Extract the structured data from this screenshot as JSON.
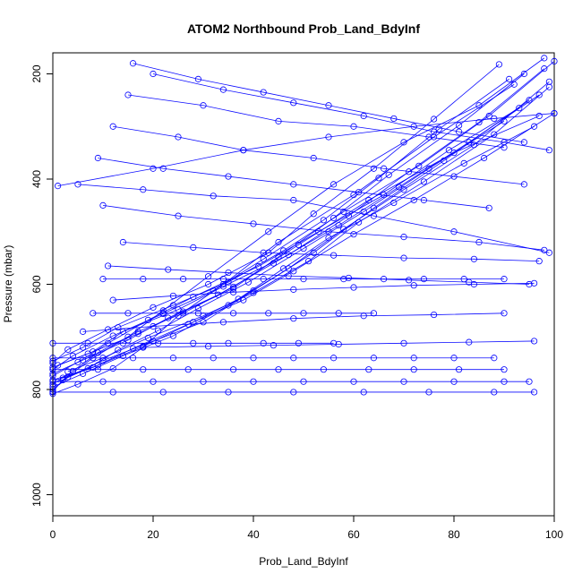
{
  "chart_data": {
    "type": "line",
    "title": "ATOM2 Northbound Prob_Land_BdyInf",
    "xlabel": "Prob_Land_BdyInf",
    "ylabel": "Pressure (mbar)",
    "xlim": [
      0,
      100
    ],
    "ylim": [
      160,
      1040
    ],
    "y_inverted": true,
    "x_ticks": [
      0,
      20,
      40,
      60,
      80,
      100
    ],
    "y_ticks": [
      200,
      400,
      600,
      800,
      1000
    ],
    "grid": false,
    "legend": "none",
    "color": "#0000ff",
    "marker": "open-circle",
    "series": [
      {
        "x": [
          0,
          5,
          12,
          18,
          25,
          34,
          45,
          60,
          76,
          92
        ],
        "y": [
          808,
          790,
          760,
          720,
          660,
          600,
          520,
          430,
          320,
          220
        ]
      },
      {
        "x": [
          0,
          2,
          8,
          15,
          22,
          31,
          43,
          56,
          70,
          85,
          98
        ],
        "y": [
          804,
          782,
          740,
          700,
          650,
          585,
          500,
          410,
          330,
          260,
          170
        ]
      },
      {
        "x": [
          0,
          3,
          10,
          20,
          30,
          40,
          52,
          64,
          78,
          95
        ],
        "y": [
          800,
          776,
          745,
          708,
          672,
          612,
          540,
          455,
          365,
          250
        ]
      },
      {
        "x": [
          0,
          6,
          14,
          24,
          35,
          47,
          58,
          70,
          84,
          99
        ],
        "y": [
          795,
          770,
          736,
          698,
          640,
          570,
          495,
          420,
          335,
          215
        ]
      },
      {
        "x": [
          0,
          4,
          9,
          17,
          26,
          36,
          49,
          63,
          80,
          97
        ],
        "y": [
          790,
          765,
          730,
          690,
          655,
          605,
          525,
          440,
          350,
          280
        ]
      },
      {
        "x": [
          1,
          7,
          13,
          21,
          29,
          39,
          50,
          62,
          75,
          90
        ],
        "y": [
          786,
          760,
          725,
          688,
          646,
          596,
          532,
          462,
          380,
          290
        ]
      },
      {
        "x": [
          0,
          8,
          16,
          27,
          38,
          48,
          60,
          72,
          86,
          100
        ],
        "y": [
          782,
          758,
          722,
          676,
          630,
          575,
          505,
          440,
          360,
          275
        ]
      },
      {
        "x": [
          2,
          9,
          18,
          28,
          37,
          46,
          55,
          68,
          82,
          96
        ],
        "y": [
          778,
          754,
          718,
          672,
          628,
          570,
          512,
          445,
          370,
          300
        ]
      },
      {
        "x": [
          0,
          5,
          11,
          19,
          28,
          41,
          53,
          66,
          79,
          93
        ],
        "y": [
          774,
          748,
          712,
          668,
          624,
          566,
          500,
          430,
          345,
          265
        ]
      },
      {
        "x": [
          0,
          6,
          15,
          23,
          33,
          44,
          57,
          69,
          83,
          97
        ],
        "y": [
          770,
          744,
          706,
          664,
          620,
          560,
          488,
          415,
          330,
          240
        ]
      },
      {
        "x": [
          3,
          10,
          19,
          30,
          40,
          51,
          61,
          74,
          88,
          99
        ],
        "y": [
          766,
          740,
          702,
          660,
          616,
          556,
          482,
          405,
          315,
          225
        ]
      },
      {
        "x": [
          0,
          4,
          12,
          22,
          32,
          42,
          54,
          65,
          77,
          91
        ],
        "y": [
          762,
          736,
          698,
          656,
          612,
          552,
          478,
          398,
          305,
          210
        ]
      },
      {
        "x": [
          0,
          7,
          17,
          26,
          36,
          45,
          56,
          67,
          81,
          94
        ],
        "y": [
          758,
          732,
          694,
          652,
          608,
          548,
          474,
          392,
          298,
          200
        ]
      },
      {
        "x": [
          1,
          8,
          14,
          25,
          34,
          47,
          59,
          71,
          85,
          98
        ],
        "y": [
          754,
          728,
          690,
          648,
          604,
          544,
          470,
          386,
          292,
          190
        ]
      },
      {
        "x": [
          0,
          3,
          11,
          20,
          31,
          43,
          52,
          64,
          76,
          89
        ],
        "y": [
          750,
          724,
          686,
          644,
          600,
          540,
          466,
          380,
          286,
          182
        ]
      },
      {
        "x": [
          0,
          6,
          13,
          24,
          35,
          46,
          58,
          73,
          87,
          100
        ],
        "y": [
          746,
          720,
          682,
          640,
          596,
          536,
          462,
          375,
          280,
          176
        ]
      },
      {
        "x": [
          0,
          12,
          22,
          35,
          48,
          62,
          75,
          88,
          96
        ],
        "y": [
          805,
          805,
          805,
          805,
          805,
          805,
          805,
          805,
          805
        ]
      },
      {
        "x": [
          0,
          10,
          20,
          30,
          40,
          50,
          60,
          70,
          80,
          90,
          95
        ],
        "y": [
          785,
          785,
          785,
          785,
          785,
          785,
          785,
          785,
          785,
          785,
          785
        ]
      },
      {
        "x": [
          0,
          9,
          18,
          27,
          36,
          45,
          54,
          63,
          72,
          81,
          90
        ],
        "y": [
          762,
          762,
          762,
          762,
          762,
          762,
          762,
          762,
          762,
          762,
          762
        ]
      },
      {
        "x": [
          0,
          8,
          16,
          24,
          32,
          40,
          48,
          56,
          64,
          72,
          80,
          88
        ],
        "y": [
          740,
          740,
          740,
          740,
          740,
          740,
          740,
          740,
          740,
          740,
          740,
          740
        ]
      },
      {
        "x": [
          0,
          7,
          14,
          21,
          28,
          35,
          42,
          49,
          56
        ],
        "y": [
          712,
          712,
          712,
          712,
          712,
          712,
          712,
          712,
          712
        ]
      },
      {
        "x": [
          10,
          18,
          26,
          34,
          42,
          50,
          58,
          66,
          74,
          82,
          90
        ],
        "y": [
          590,
          590,
          590,
          590,
          590,
          590,
          590,
          590,
          590,
          590,
          590
        ]
      },
      {
        "x": [
          8,
          15,
          22,
          29,
          36,
          43,
          50,
          57,
          64
        ],
        "y": [
          655,
          655,
          655,
          655,
          655,
          655,
          655,
          655,
          655
        ]
      },
      {
        "x": [
          5,
          18,
          32,
          48,
          64,
          80,
          99
        ],
        "y": [
          410,
          420,
          432,
          440,
          470,
          500,
          540
        ]
      },
      {
        "x": [
          1,
          20,
          38,
          55,
          72,
          88,
          100
        ],
        "y": [
          413,
          380,
          345,
          320,
          300,
          285,
          275
        ]
      },
      {
        "x": [
          12,
          25,
          38,
          52,
          66,
          80,
          94
        ],
        "y": [
          300,
          320,
          345,
          360,
          380,
          395,
          410
        ]
      },
      {
        "x": [
          20,
          34,
          48,
          62,
          76,
          90,
          99
        ],
        "y": [
          200,
          230,
          255,
          280,
          310,
          330,
          345
        ]
      },
      {
        "x": [
          15,
          30,
          45,
          60,
          75,
          90
        ],
        "y": [
          240,
          260,
          290,
          300,
          320,
          340
        ]
      },
      {
        "x": [
          10,
          25,
          40,
          55,
          70,
          85,
          98
        ],
        "y": [
          450,
          470,
          485,
          500,
          510,
          520,
          535
        ]
      },
      {
        "x": [
          12,
          24,
          36,
          48,
          60,
          72,
          84,
          96
        ],
        "y": [
          630,
          622,
          615,
          610,
          606,
          602,
          600,
          598
        ]
      },
      {
        "x": [
          6,
          20,
          34,
          48,
          62,
          76,
          90
        ],
        "y": [
          690,
          680,
          672,
          665,
          660,
          658,
          655
        ]
      },
      {
        "x": [
          9,
          22,
          35,
          48,
          61,
          74,
          87
        ],
        "y": [
          360,
          380,
          395,
          410,
          425,
          440,
          455
        ]
      },
      {
        "x": [
          14,
          28,
          42,
          56,
          70,
          84,
          97
        ],
        "y": [
          520,
          530,
          540,
          545,
          550,
          552,
          556
        ]
      },
      {
        "x": [
          11,
          23,
          35,
          47,
          59,
          71,
          83,
          95
        ],
        "y": [
          565,
          572,
          578,
          584,
          588,
          592,
          596,
          600
        ]
      },
      {
        "x": [
          16,
          29,
          42,
          55,
          68,
          81,
          94
        ],
        "y": [
          180,
          210,
          235,
          260,
          285,
          310,
          330
        ]
      },
      {
        "x": [
          18,
          31,
          44,
          57,
          70,
          83,
          96
        ],
        "y": [
          720,
          718,
          716,
          714,
          712,
          710,
          708
        ]
      }
    ]
  }
}
